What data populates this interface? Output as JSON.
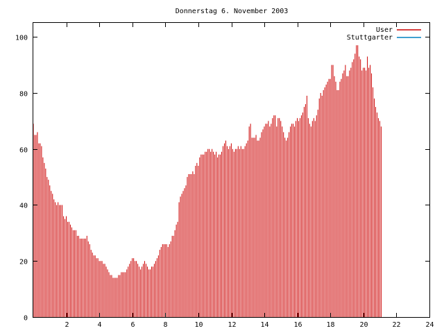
{
  "chart_data": {
    "type": "bar",
    "title": "Donnerstag 6. November 2003",
    "xlabel": "",
    "ylabel": "",
    "xlim": [
      0,
      24
    ],
    "ylim": [
      0,
      105
    ],
    "x_ticks": [
      2,
      4,
      6,
      8,
      10,
      12,
      14,
      16,
      18,
      20,
      22,
      24
    ],
    "y_ticks": [
      0,
      20,
      40,
      60,
      80,
      100
    ],
    "grid": false,
    "legend_position": "top-right",
    "series": [
      {
        "name": "User",
        "color": "#cc0000",
        "x_start": 0,
        "x_step": 0.0833,
        "values": [
          69,
          65,
          65,
          66,
          62,
          62,
          61,
          57,
          55,
          53,
          50,
          49,
          47,
          45,
          44,
          42,
          41,
          40,
          41,
          40,
          40,
          40,
          36,
          35,
          36,
          34,
          34,
          33,
          32,
          31,
          31,
          31,
          29,
          29,
          28,
          28,
          28,
          28,
          28,
          29,
          27,
          26,
          24,
          23,
          22,
          22,
          21,
          21,
          20,
          20,
          20,
          19,
          19,
          18,
          17,
          16,
          15,
          15,
          14,
          14,
          14,
          14,
          15,
          15,
          16,
          16,
          16,
          16,
          17,
          18,
          19,
          20,
          21,
          21,
          20,
          20,
          19,
          18,
          17,
          18,
          19,
          20,
          19,
          18,
          17,
          17,
          18,
          18,
          19,
          20,
          21,
          22,
          24,
          25,
          26,
          26,
          26,
          26,
          25,
          26,
          27,
          29,
          29,
          31,
          33,
          34,
          41,
          43,
          44,
          45,
          46,
          47,
          50,
          51,
          51,
          51,
          52,
          51,
          54,
          55,
          54,
          57,
          58,
          58,
          58,
          59,
          59,
          60,
          60,
          59,
          60,
          59,
          58,
          59,
          57,
          58,
          58,
          59,
          61,
          62,
          63,
          61,
          60,
          61,
          62,
          60,
          59,
          60,
          60,
          61,
          60,
          61,
          60,
          60,
          61,
          62,
          63,
          68,
          69,
          64,
          64,
          64,
          65,
          63,
          63,
          64,
          66,
          67,
          68,
          69,
          69,
          70,
          68,
          69,
          71,
          72,
          72,
          68,
          71,
          71,
          70,
          68,
          66,
          64,
          63,
          64,
          66,
          68,
          69,
          69,
          68,
          70,
          71,
          70,
          71,
          72,
          73,
          75,
          76,
          79,
          71,
          69,
          68,
          70,
          71,
          70,
          72,
          74,
          78,
          80,
          79,
          81,
          82,
          83,
          84,
          85,
          85,
          90,
          90,
          86,
          84,
          81,
          81,
          84,
          85,
          87,
          88,
          90,
          86,
          86,
          88,
          89,
          91,
          92,
          94,
          97,
          97,
          93,
          92,
          88,
          89,
          89,
          88,
          93,
          89,
          90,
          87,
          82,
          78,
          75,
          73,
          71,
          70,
          68
        ]
      },
      {
        "name": "Stuttgarter",
        "color": "#0080c0",
        "x_start": 0,
        "x_step": 0.0833,
        "values": [
          0,
          0,
          0,
          0,
          0,
          0,
          0,
          0,
          0,
          0,
          0,
          0,
          0,
          0,
          0,
          0,
          0,
          0,
          0,
          0,
          0,
          0,
          0,
          0,
          0,
          0,
          0,
          0,
          0,
          0,
          0,
          0,
          0,
          0,
          0,
          0,
          0,
          0,
          0,
          0,
          0,
          0,
          0,
          0,
          0,
          0,
          0,
          0,
          0,
          0,
          0,
          0,
          0,
          0,
          0,
          0,
          0,
          0,
          0,
          0,
          0,
          0,
          0,
          0,
          0,
          0,
          0,
          0,
          0,
          0,
          0,
          0,
          0,
          0,
          0,
          0,
          0,
          0,
          0,
          0,
          0,
          0,
          0,
          0,
          0,
          0,
          0,
          0,
          0,
          0,
          0,
          0,
          0,
          0,
          0,
          0,
          0,
          0,
          0,
          0,
          0,
          0,
          0,
          0,
          0,
          0,
          0,
          0,
          0,
          0,
          0,
          0,
          0,
          0,
          0,
          0,
          0,
          0,
          0,
          0,
          0,
          0,
          0,
          0,
          0,
          0,
          0,
          0,
          0,
          0,
          0,
          0,
          0,
          0,
          0,
          0,
          0,
          0,
          0,
          0,
          0,
          0,
          0,
          0,
          0,
          0,
          0,
          0,
          0,
          0,
          0,
          0,
          0,
          0,
          0,
          0,
          0,
          0,
          0,
          0,
          0,
          0,
          0,
          0,
          0,
          0,
          0,
          0,
          0,
          0,
          0,
          0,
          0,
          0,
          0,
          0,
          0,
          0,
          0,
          0,
          0,
          0,
          0,
          0,
          0,
          0,
          0,
          0,
          0,
          0,
          0,
          0,
          0,
          0,
          0,
          0,
          0,
          0,
          0,
          0,
          0,
          0,
          0,
          0,
          0,
          0,
          0,
          0,
          0,
          0,
          0,
          0,
          0,
          0,
          0,
          0,
          0,
          0,
          0,
          0,
          0,
          0,
          0,
          0,
          0,
          0,
          0,
          0,
          0,
          0,
          0,
          0,
          0,
          0,
          0,
          0,
          0,
          0,
          0,
          0,
          0,
          0,
          0,
          0,
          0,
          0,
          0,
          0,
          0,
          0,
          0,
          0,
          0,
          0,
          0,
          0,
          0,
          0,
          0,
          0,
          0,
          0,
          0,
          0,
          0
        ]
      }
    ]
  }
}
